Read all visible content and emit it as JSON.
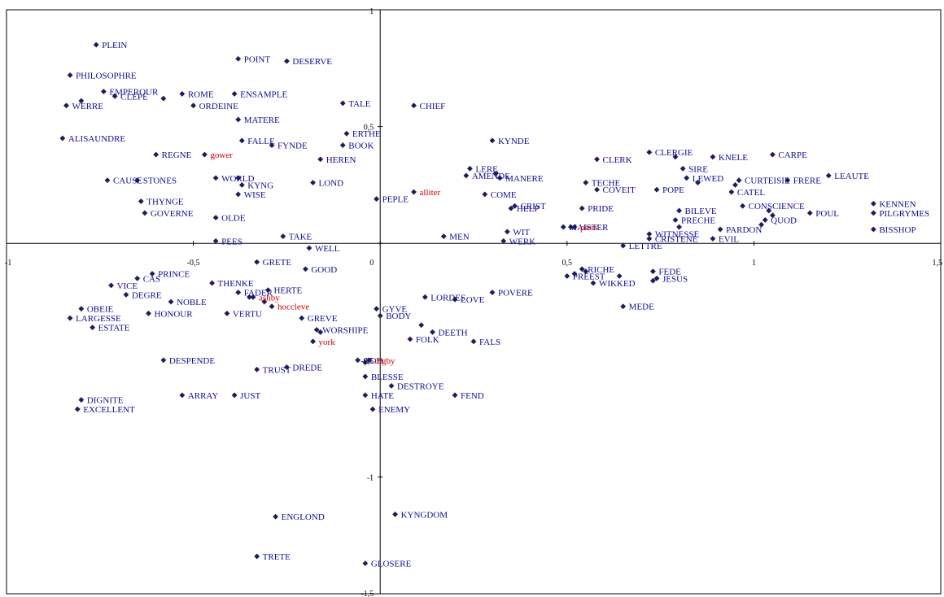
{
  "chart_data": {
    "type": "scatter",
    "title": "",
    "xlabel": "",
    "ylabel": "",
    "xlim": [
      -1,
      1.5
    ],
    "ylim": [
      -1.5,
      1
    ],
    "x_ticks": [
      -1,
      -0.5,
      0,
      0.5,
      1,
      1.5
    ],
    "y_ticks": [
      -1.5,
      -1,
      -0.5,
      0,
      0.5,
      1
    ],
    "x_tick_labels": [
      "-1",
      "-0,5",
      "0",
      "0,5",
      "1",
      "1,5"
    ],
    "y_tick_labels": [
      "-1,5",
      "-1",
      "-0,5",
      "0",
      "0,5",
      "1"
    ],
    "grid": false,
    "legend": "none",
    "colors": {
      "word": "#0d0d8f",
      "text": "#cc0000",
      "marker": "#1a1a6e",
      "axis": "#000000"
    },
    "series": [
      {
        "kind": "word",
        "points": [
          {
            "label": "PLEIN",
            "x": -0.76,
            "y": 0.85
          },
          {
            "label": "PHILOSOPHRE",
            "x": -0.83,
            "y": 0.72
          },
          {
            "label": "EMPEROUR",
            "x": -0.74,
            "y": 0.65
          },
          {
            "label": "CLEPE",
            "x": -0.71,
            "y": 0.63
          },
          {
            "label": "WERRE",
            "x": -0.84,
            "y": 0.59
          },
          {
            "label": "",
            "x": -0.8,
            "y": 0.61
          },
          {
            "label": "",
            "x": -0.58,
            "y": 0.62
          },
          {
            "label": "ROME",
            "x": -0.53,
            "y": 0.64
          },
          {
            "label": "ORDEINE",
            "x": -0.5,
            "y": 0.59
          },
          {
            "label": "POINT",
            "x": -0.38,
            "y": 0.79
          },
          {
            "label": "DESERVE",
            "x": -0.25,
            "y": 0.78
          },
          {
            "label": "ENSAMPLE",
            "x": -0.39,
            "y": 0.64
          },
          {
            "label": "MATERE",
            "x": -0.38,
            "y": 0.53
          },
          {
            "label": "TALE",
            "x": -0.1,
            "y": 0.6
          },
          {
            "label": "CHIEF",
            "x": 0.09,
            "y": 0.59
          },
          {
            "label": "ALISAUNDRE",
            "x": -0.85,
            "y": 0.45
          },
          {
            "label": "FALLE",
            "x": -0.37,
            "y": 0.44
          },
          {
            "label": "FYNDE",
            "x": -0.29,
            "y": 0.42
          },
          {
            "label": "ERTHE",
            "x": -0.09,
            "y": 0.47
          },
          {
            "label": "BOOK",
            "x": -0.1,
            "y": 0.42
          },
          {
            "label": "KYNDE",
            "x": 0.3,
            "y": 0.44
          },
          {
            "label": "REGNE",
            "x": -0.6,
            "y": 0.38
          },
          {
            "label": "HEREN",
            "x": -0.16,
            "y": 0.36
          },
          {
            "label": "CAUSE",
            "x": -0.73,
            "y": 0.27
          },
          {
            "label": "STONES",
            "x": -0.65,
            "y": 0.27
          },
          {
            "label": "WORLD",
            "x": -0.44,
            "y": 0.28
          },
          {
            "label": "",
            "x": -0.38,
            "y": 0.28
          },
          {
            "label": "KYNG",
            "x": -0.37,
            "y": 0.25
          },
          {
            "label": "WISE",
            "x": -0.38,
            "y": 0.21
          },
          {
            "label": "LOND",
            "x": -0.18,
            "y": 0.26
          },
          {
            "label": "PEPLE",
            "x": -0.01,
            "y": 0.19
          },
          {
            "label": "THYNGE",
            "x": -0.64,
            "y": 0.18
          },
          {
            "label": "GOVERNE",
            "x": -0.63,
            "y": 0.13
          },
          {
            "label": "OLDE",
            "x": -0.44,
            "y": 0.11
          },
          {
            "label": "TAKE",
            "x": -0.26,
            "y": 0.03
          },
          {
            "label": "PEES",
            "x": -0.44,
            "y": 0.01
          },
          {
            "label": "WELL",
            "x": -0.19,
            "y": -0.02
          },
          {
            "label": "LERE",
            "x": 0.24,
            "y": 0.32
          },
          {
            "label": "AMENDE",
            "x": 0.23,
            "y": 0.29
          },
          {
            "label": "MANERE",
            "x": 0.32,
            "y": 0.28
          },
          {
            "label": "",
            "x": 0.31,
            "y": 0.3
          },
          {
            "label": "COME",
            "x": 0.28,
            "y": 0.21
          },
          {
            "label": "CRIST",
            "x": 0.36,
            "y": 0.16
          },
          {
            "label": "HELP",
            "x": 0.35,
            "y": 0.15
          },
          {
            "label": "WIT",
            "x": 0.34,
            "y": 0.05
          },
          {
            "label": "WERK",
            "x": 0.33,
            "y": 0.01
          },
          {
            "label": "MEN",
            "x": 0.17,
            "y": 0.03
          },
          {
            "label": "MAISTER",
            "x": 0.49,
            "y": 0.07
          },
          {
            "label": "",
            "x": 0.51,
            "y": 0.07
          },
          {
            "label": "PRIDE",
            "x": 0.54,
            "y": 0.15
          },
          {
            "label": "CLERK",
            "x": 0.58,
            "y": 0.36
          },
          {
            "label": "TECHE",
            "x": 0.55,
            "y": 0.26
          },
          {
            "label": "COVEIT",
            "x": 0.58,
            "y": 0.23
          },
          {
            "label": "CLERGIE",
            "x": 0.72,
            "y": 0.39
          },
          {
            "label": "",
            "x": 0.79,
            "y": 0.37
          },
          {
            "label": "SIRE",
            "x": 0.81,
            "y": 0.32
          },
          {
            "label": "LEWED",
            "x": 0.82,
            "y": 0.28
          },
          {
            "label": "",
            "x": 0.85,
            "y": 0.26
          },
          {
            "label": "POPE",
            "x": 0.74,
            "y": 0.23
          },
          {
            "label": "KNELE",
            "x": 0.89,
            "y": 0.37
          },
          {
            "label": "CARPE",
            "x": 1.05,
            "y": 0.38
          },
          {
            "label": "CURTEISIE",
            "x": 0.96,
            "y": 0.27
          },
          {
            "label": "",
            "x": 0.95,
            "y": 0.25
          },
          {
            "label": "FRERE",
            "x": 1.09,
            "y": 0.27
          },
          {
            "label": "LEAUTE",
            "x": 1.2,
            "y": 0.29
          },
          {
            "label": "CATEL",
            "x": 0.94,
            "y": 0.22
          },
          {
            "label": "CONSCIENCE",
            "x": 0.97,
            "y": 0.16
          },
          {
            "label": "",
            "x": 1.04,
            "y": 0.14
          },
          {
            "label": "",
            "x": 1.05,
            "y": 0.12
          },
          {
            "label": "QUOD",
            "x": 1.03,
            "y": 0.1
          },
          {
            "label": "",
            "x": 1.02,
            "y": 0.08
          },
          {
            "label": "POUL",
            "x": 1.15,
            "y": 0.13
          },
          {
            "label": "BILEVE",
            "x": 0.8,
            "y": 0.14
          },
          {
            "label": "PRECHE",
            "x": 0.79,
            "y": 0.1
          },
          {
            "label": "",
            "x": 0.8,
            "y": 0.07
          },
          {
            "label": "PARDON",
            "x": 0.91,
            "y": 0.06
          },
          {
            "label": "EVIL",
            "x": 0.89,
            "y": 0.02
          },
          {
            "label": "WITNESSE",
            "x": 0.72,
            "y": 0.04
          },
          {
            "label": "CRISTENE",
            "x": 0.72,
            "y": 0.02
          },
          {
            "label": "LETTRE",
            "x": 0.65,
            "y": -0.01
          },
          {
            "label": "KENNEN",
            "x": 1.32,
            "y": 0.17
          },
          {
            "label": "PILGRYMES",
            "x": 1.32,
            "y": 0.13
          },
          {
            "label": "BISSHOP",
            "x": 1.32,
            "y": 0.06
          },
          {
            "label": "PREEST",
            "x": 0.5,
            "y": -0.14
          },
          {
            "label": "RICHE",
            "x": 0.54,
            "y": -0.11
          },
          {
            "label": "",
            "x": 0.52,
            "y": -0.13
          },
          {
            "label": "",
            "x": 0.55,
            "y": -0.12
          },
          {
            "label": "",
            "x": 0.64,
            "y": -0.14
          },
          {
            "label": "WIKKED",
            "x": 0.57,
            "y": -0.17
          },
          {
            "label": "FEDE",
            "x": 0.73,
            "y": -0.12
          },
          {
            "label": "JESUS",
            "x": 0.74,
            "y": -0.15
          },
          {
            "label": "",
            "x": 0.73,
            "y": -0.16
          },
          {
            "label": "MEDE",
            "x": 0.65,
            "y": -0.27
          },
          {
            "label": "GRETE",
            "x": -0.33,
            "y": -0.08
          },
          {
            "label": "GOOD",
            "x": -0.2,
            "y": -0.11
          },
          {
            "label": "PRINCE",
            "x": -0.61,
            "y": -0.13
          },
          {
            "label": "CAS",
            "x": -0.65,
            "y": -0.15
          },
          {
            "label": "VICE",
            "x": -0.72,
            "y": -0.18
          },
          {
            "label": "DEGRE",
            "x": -0.68,
            "y": -0.22
          },
          {
            "label": "THENKE",
            "x": -0.45,
            "y": -0.17
          },
          {
            "label": "FADER",
            "x": -0.38,
            "y": -0.21
          },
          {
            "label": "",
            "x": -0.35,
            "y": -0.23
          },
          {
            "label": "HERTE",
            "x": -0.3,
            "y": -0.2
          },
          {
            "label": "",
            "x": -0.31,
            "y": -0.25
          },
          {
            "label": "NOBLE",
            "x": -0.56,
            "y": -0.25
          },
          {
            "label": "OBEIE",
            "x": -0.8,
            "y": -0.28
          },
          {
            "label": "LARGESSE",
            "x": -0.83,
            "y": -0.32
          },
          {
            "label": "HONOUR",
            "x": -0.62,
            "y": -0.3
          },
          {
            "label": "VERTU",
            "x": -0.41,
            "y": -0.3
          },
          {
            "label": "ESTATE",
            "x": -0.77,
            "y": -0.36
          },
          {
            "label": "GREVE",
            "x": -0.21,
            "y": -0.32
          },
          {
            "label": "WORSHIPE",
            "x": -0.17,
            "y": -0.37
          },
          {
            "label": "",
            "x": -0.16,
            "y": -0.38
          },
          {
            "label": "LORDES",
            "x": 0.12,
            "y": -0.23
          },
          {
            "label": "LOVE",
            "x": 0.2,
            "y": -0.24
          },
          {
            "label": "POVERE",
            "x": 0.3,
            "y": -0.21
          },
          {
            "label": "GYVE",
            "x": -0.01,
            "y": -0.28
          },
          {
            "label": "BODY",
            "x": 0.0,
            "y": -0.31
          },
          {
            "label": "DEETH",
            "x": 0.14,
            "y": -0.38
          },
          {
            "label": "",
            "x": 0.11,
            "y": -0.35
          },
          {
            "label": "FOLK",
            "x": 0.08,
            "y": -0.41
          },
          {
            "label": "FALS",
            "x": 0.25,
            "y": -0.42
          },
          {
            "label": "GOD",
            "x": -0.06,
            "y": -0.5
          },
          {
            "label": "",
            "x": -0.04,
            "y": -0.51
          },
          {
            "label": "DESPENDE",
            "x": -0.58,
            "y": -0.5
          },
          {
            "label": "TRUST",
            "x": -0.33,
            "y": -0.54
          },
          {
            "label": "DREDE",
            "x": -0.25,
            "y": -0.53
          },
          {
            "label": "BLESSE",
            "x": -0.04,
            "y": -0.57
          },
          {
            "label": "DESTROYE",
            "x": 0.03,
            "y": -0.61
          },
          {
            "label": "HATE",
            "x": -0.04,
            "y": -0.65
          },
          {
            "label": "FEND",
            "x": 0.2,
            "y": -0.65
          },
          {
            "label": "ARRAY",
            "x": -0.53,
            "y": -0.65
          },
          {
            "label": "JUST",
            "x": -0.39,
            "y": -0.65
          },
          {
            "label": "DIGNITE",
            "x": -0.8,
            "y": -0.67
          },
          {
            "label": "EXCELLENT",
            "x": -0.81,
            "y": -0.71
          },
          {
            "label": "ENEMY",
            "x": -0.02,
            "y": -0.71
          },
          {
            "label": "ENGLOND",
            "x": -0.28,
            "y": -1.17
          },
          {
            "label": "KYNGDOM",
            "x": 0.04,
            "y": -1.16
          },
          {
            "label": "TRETE",
            "x": -0.33,
            "y": -1.34
          },
          {
            "label": "GLOSERE",
            "x": -0.04,
            "y": -1.37
          }
        ]
      },
      {
        "kind": "text",
        "points": [
          {
            "label": "gower",
            "x": -0.47,
            "y": 0.38
          },
          {
            "label": "alliter",
            "x": 0.09,
            "y": 0.22
          },
          {
            "label": "piers",
            "x": 0.52,
            "y": 0.07
          },
          {
            "label": "ashby",
            "x": -0.34,
            "y": -0.23
          },
          {
            "label": "hoccleve",
            "x": -0.29,
            "y": -0.27
          },
          {
            "label": "york",
            "x": -0.18,
            "y": -0.42
          },
          {
            "label": "digby",
            "x": -0.03,
            "y": -0.5
          }
        ]
      }
    ]
  }
}
